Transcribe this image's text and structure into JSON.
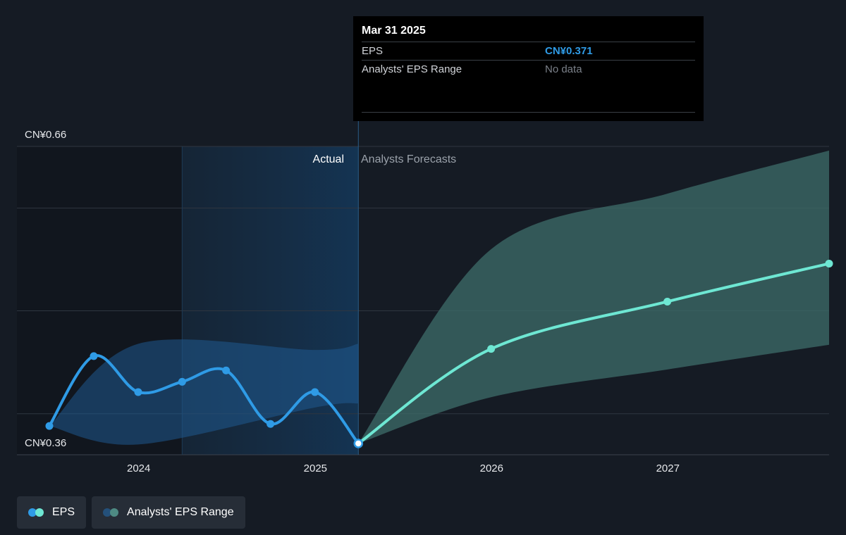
{
  "colors": {
    "background": "#151b24",
    "eps_actual": "#2f9be6",
    "eps_forecast": "#6ee7d3",
    "range_actual": "#1f5a8f",
    "range_forecast": "#3d6e69",
    "grid": "#2f3640"
  },
  "tooltip": {
    "date": "Mar 31 2025",
    "rows": [
      {
        "label": "EPS",
        "value": "CN¥0.371"
      },
      {
        "label": "Analysts' EPS Range",
        "value": "No data"
      }
    ]
  },
  "legend": [
    {
      "label": "EPS",
      "icon": "eps-dots-icon"
    },
    {
      "label": "Analysts' EPS Range",
      "icon": "range-dots-icon"
    }
  ],
  "chart_data": {
    "type": "line",
    "y_tick_labels": {
      "top": "CN¥0.66",
      "bottom": "CN¥0.36"
    },
    "ylim": [
      0.36,
      0.66
    ],
    "xlim": [
      "2023-06-30",
      "2027-12-01"
    ],
    "x_ticks": [
      {
        "label": "2024",
        "date": "2024-01-01"
      },
      {
        "label": "2025",
        "date": "2025-01-01"
      },
      {
        "label": "2026",
        "date": "2026-01-01"
      },
      {
        "label": "2027",
        "date": "2027-01-01"
      }
    ],
    "region_labels": {
      "actual": "Actual",
      "forecast": "Analysts Forecasts"
    },
    "divider_date": "2025-03-31",
    "past_shade_start": "2024-03-31",
    "grid": true,
    "legend_position": "bottom-left",
    "series": [
      {
        "name": "EPS",
        "kind": "actual",
        "points": [
          {
            "x": "2023-06-30",
            "y": 0.388
          },
          {
            "x": "2023-09-30",
            "y": 0.456
          },
          {
            "x": "2023-12-31",
            "y": 0.421
          },
          {
            "x": "2024-03-31",
            "y": 0.431
          },
          {
            "x": "2024-06-30",
            "y": 0.442
          },
          {
            "x": "2024-09-30",
            "y": 0.39
          },
          {
            "x": "2024-12-31",
            "y": 0.421
          },
          {
            "x": "2025-03-31",
            "y": 0.371
          }
        ]
      },
      {
        "name": "EPS",
        "kind": "forecast",
        "points": [
          {
            "x": "2025-03-31",
            "y": 0.371
          },
          {
            "x": "2025-12-31",
            "y": 0.463
          },
          {
            "x": "2026-12-31",
            "y": 0.509
          },
          {
            "x": "2027-12-01",
            "y": 0.546
          }
        ]
      },
      {
        "name": "Analysts' EPS Range",
        "kind": "range-actual",
        "upper": [
          {
            "x": "2023-06-30",
            "y": 0.388
          },
          {
            "x": "2023-12-31",
            "y": 0.468
          },
          {
            "x": "2024-12-31",
            "y": 0.462
          },
          {
            "x": "2025-03-31",
            "y": 0.468
          }
        ],
        "lower": [
          {
            "x": "2023-06-30",
            "y": 0.388
          },
          {
            "x": "2023-12-31",
            "y": 0.37
          },
          {
            "x": "2024-12-31",
            "y": 0.406
          },
          {
            "x": "2025-03-31",
            "y": 0.41
          }
        ]
      },
      {
        "name": "Analysts' EPS Range",
        "kind": "range-forecast",
        "upper": [
          {
            "x": "2025-03-31",
            "y": 0.371
          },
          {
            "x": "2025-12-31",
            "y": 0.56
          },
          {
            "x": "2026-12-31",
            "y": 0.614
          },
          {
            "x": "2027-12-01",
            "y": 0.656
          }
        ],
        "lower": [
          {
            "x": "2025-03-31",
            "y": 0.371
          },
          {
            "x": "2025-12-31",
            "y": 0.416
          },
          {
            "x": "2026-12-31",
            "y": 0.443
          },
          {
            "x": "2027-12-01",
            "y": 0.467
          }
        ]
      }
    ]
  }
}
